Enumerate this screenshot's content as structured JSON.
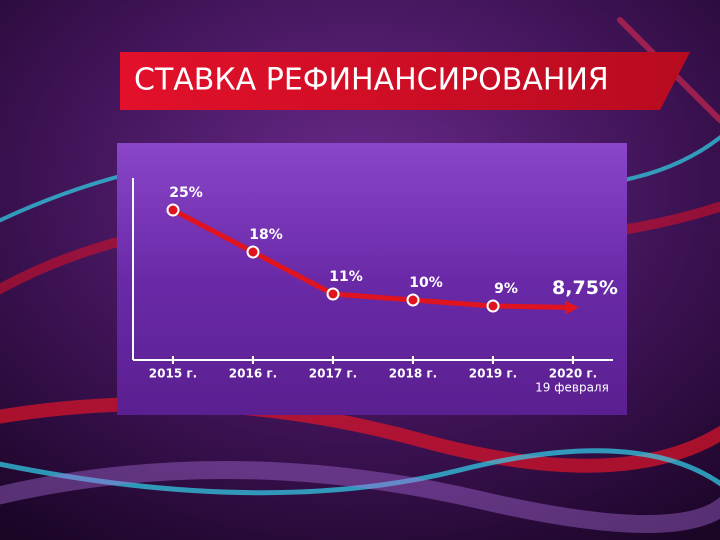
{
  "chart_data": {
    "type": "line",
    "title": "СТАВКА РЕФИНАНСИРОВАНИЯ",
    "categories": [
      "2015 г.",
      "2016 г.",
      "2017 г.",
      "2018 г.",
      "2019 г.",
      "2020 г."
    ],
    "date_note": "19 февраля",
    "values": [
      25,
      18,
      11,
      10,
      9,
      8.75
    ],
    "value_labels": [
      "25%",
      "18%",
      "11%",
      "10%",
      "9%",
      "8,75%"
    ],
    "color": "#e0141e",
    "ylim": [
      0,
      35
    ]
  }
}
